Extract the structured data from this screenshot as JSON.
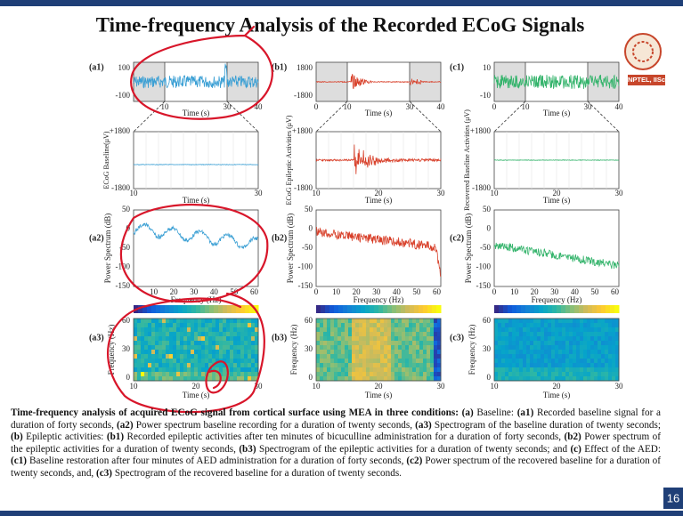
{
  "title": "Time-frequency Analysis of the Recorded ECoG Signals",
  "logo": "NPTEL, IISc",
  "page_number": "16",
  "columns": [
    {
      "signal": {
        "label": "(a1)",
        "yticks": [
          "100",
          "-100"
        ],
        "xticks": [
          "10",
          "30",
          "40"
        ],
        "xlabel": "Time (s)"
      },
      "zoom": {
        "ylabel": "ECoG Baseline(μV)",
        "yticks": [
          "+1800",
          "-1800"
        ],
        "xticks": [
          "10",
          "30"
        ],
        "xlabel": "Time (s)"
      },
      "spectrum": {
        "label": "(a2)",
        "ylabel": "Power Spectrum (dB)",
        "yticks": [
          "50",
          "0",
          "-50",
          "-100",
          "-150"
        ],
        "xticks": [
          "10",
          "20",
          "30",
          "40",
          "50",
          "60"
        ],
        "xlabel": "Frequency (Hz)"
      },
      "spectrogram": {
        "label": "(a3)",
        "ylabel": "Frequency (Hz)",
        "yticks": [
          "60",
          "30",
          "0"
        ],
        "xticks": [
          "10",
          "20",
          "30"
        ],
        "xlabel": "Time (s)"
      }
    },
    {
      "signal": {
        "label": "(b1)",
        "yticks": [
          "1800",
          "-1800"
        ],
        "xticks": [
          "0",
          "10",
          "30",
          "40"
        ],
        "xlabel": "Time (s)"
      },
      "zoom": {
        "ylabel": "ECoG Epileptic Activities (μV)",
        "yticks": [
          "+1800",
          "-1800"
        ],
        "xticks": [
          "10",
          "20",
          "30"
        ],
        "xlabel": "Time (s)"
      },
      "spectrum": {
        "label": "(b2)",
        "ylabel": "Power Spectrum (dB)",
        "yticks": [
          "50",
          "0",
          "-50",
          "-100",
          "-150"
        ],
        "xticks": [
          "0",
          "10",
          "20",
          "30",
          "40",
          "50",
          "60"
        ],
        "xlabel": "Frequency (Hz)"
      },
      "spectrogram": {
        "label": "(b3)",
        "ylabel": "Frequency (Hz)",
        "yticks": [
          "60",
          "30",
          "0"
        ],
        "xticks": [
          "10",
          "20",
          "30"
        ],
        "xlabel": "Time (s)"
      }
    },
    {
      "signal": {
        "label": "(c1)",
        "yticks": [
          "10",
          "-10"
        ],
        "xticks": [
          "0",
          "10",
          "30",
          "40"
        ],
        "xlabel": "Time (s)"
      },
      "zoom": {
        "ylabel": "Recovered Baseline Activities (μV)",
        "yticks": [
          "+1800",
          "-1800"
        ],
        "xticks": [
          "10",
          "20",
          "30"
        ],
        "xlabel": "Time (s)"
      },
      "spectrum": {
        "label": "(c2)",
        "ylabel": "Power Spectrum (dB)",
        "yticks": [
          "50",
          "0",
          "-50",
          "-100",
          "-150"
        ],
        "xticks": [
          "0",
          "10",
          "20",
          "30",
          "40",
          "50",
          "60"
        ],
        "xlabel": "Frequency (Hz)"
      },
      "spectrogram": {
        "label": "(c3)",
        "ylabel": "Frequency (Hz)",
        "yticks": [
          "60",
          "30",
          "0"
        ],
        "xticks": [
          "10",
          "20",
          "30"
        ],
        "xlabel": "Time (s)"
      }
    }
  ],
  "caption": {
    "segments": [
      {
        "text": "Time-frequency analysis of acquired ECoG signal from cortical surface using MEA in three conditions: (a) ",
        "bold": true
      },
      {
        "text": "Baseline: ",
        "bold": false
      },
      {
        "text": "(a1)",
        "bold": true
      },
      {
        "text": " Recorded baseline signal for a duration of forty seconds, ",
        "bold": false
      },
      {
        "text": "(a2)",
        "bold": true
      },
      {
        "text": " Power spectrum baseline recording for a duration of twenty seconds, ",
        "bold": false
      },
      {
        "text": "(a3)",
        "bold": true
      },
      {
        "text": " Spectrogram of the baseline duration of twenty seconds; ",
        "bold": false
      },
      {
        "text": "(b)",
        "bold": true
      },
      {
        "text": " Epileptic activities: ",
        "bold": false
      },
      {
        "text": "(b1)",
        "bold": true
      },
      {
        "text": " Recorded epileptic activities after ten minutes of bicuculline administration for a duration of forty seconds, ",
        "bold": false
      },
      {
        "text": "(b2)",
        "bold": true
      },
      {
        "text": " Power spectrum of the epileptic activities for a duration of twenty seconds, ",
        "bold": false
      },
      {
        "text": "(b3)",
        "bold": true
      },
      {
        "text": " Spectrogram of the epileptic activities for a duration of twenty seconds; and ",
        "bold": false
      },
      {
        "text": "(c)",
        "bold": true
      },
      {
        "text": " Effect of the AED: ",
        "bold": false
      },
      {
        "text": "(c1)",
        "bold": true
      },
      {
        "text": " Baseline restoration after four minutes of AED administration for a duration of forty seconds, ",
        "bold": false
      },
      {
        "text": "(c2)",
        "bold": true
      },
      {
        "text": " Power spectrum of the recovered baseline for a duration of twenty seconds, and, ",
        "bold": false
      },
      {
        "text": "(c3)",
        "bold": true
      },
      {
        "text": " Spectrogram of the recovered baseline for a duration of twenty seconds.",
        "bold": false
      }
    ]
  }
}
